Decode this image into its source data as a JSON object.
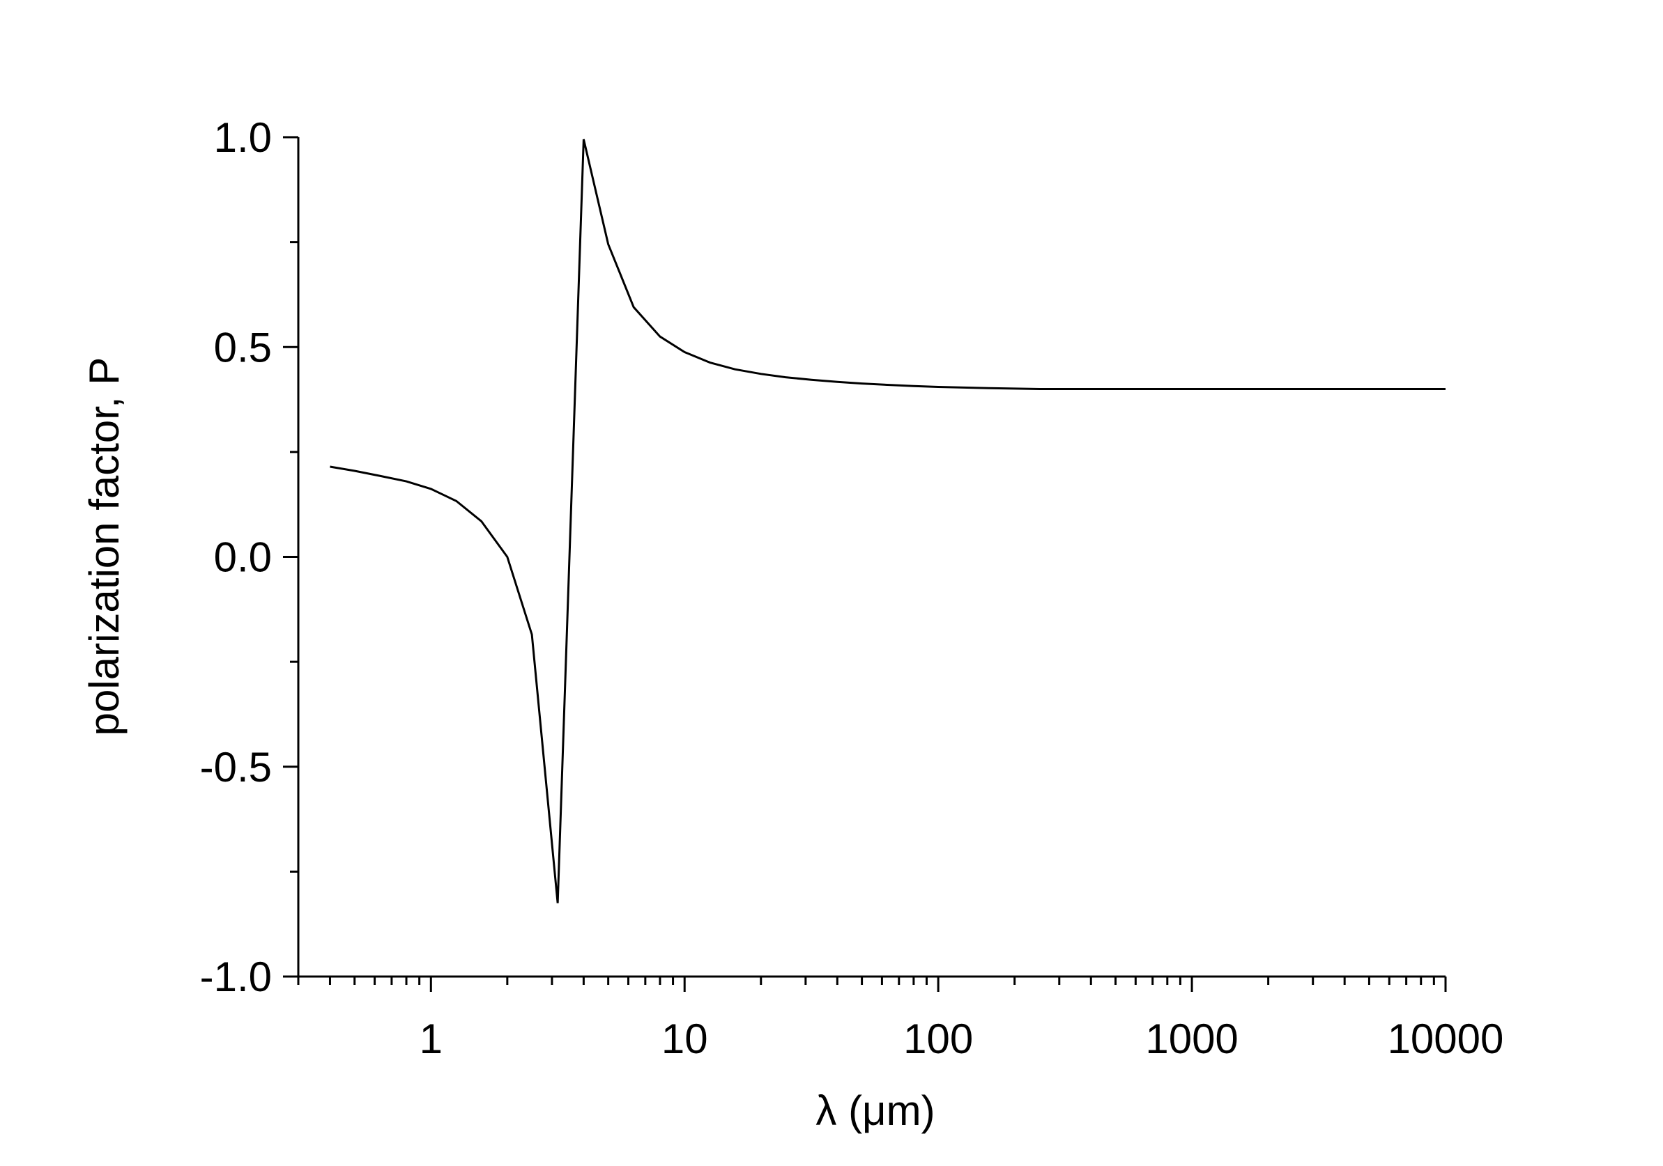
{
  "chart_data": {
    "type": "line",
    "title": "",
    "xlabel": "λ (μm)",
    "ylabel": "polarization factor, P",
    "x_scale": "log",
    "xlim": [
      0.3,
      10000
    ],
    "ylim": [
      -1.0,
      1.0
    ],
    "grid": false,
    "x_major_ticks": [
      1,
      10,
      100,
      1000,
      10000
    ],
    "x_tick_labels": [
      "1",
      "10",
      "100",
      "1000",
      "10000"
    ],
    "y_major_ticks": [
      -1.0,
      -0.5,
      0.0,
      0.5,
      1.0
    ],
    "y_tick_labels": [
      "-1.0",
      "-0.5",
      "0.0",
      "0.5",
      "1.0"
    ],
    "y_minor_ticks": [
      -0.75,
      -0.25,
      0.25,
      0.75
    ],
    "line_color": "#000000",
    "series": [
      {
        "x": [
          0.4,
          0.5,
          0.63,
          0.8,
          1.0,
          1.26,
          1.58,
          2.0,
          2.5,
          3.16,
          4.0,
          5.0,
          6.3,
          8.0,
          10,
          12.6,
          15.8,
          20,
          25,
          31.6,
          40,
          50,
          63,
          80,
          100,
          158,
          251,
          1000,
          10000
        ],
        "y": [
          0.215,
          0.205,
          0.193,
          0.18,
          0.162,
          0.133,
          0.085,
          0.0,
          -0.185,
          -0.825,
          0.995,
          0.745,
          0.595,
          0.525,
          0.488,
          0.463,
          0.447,
          0.436,
          0.428,
          0.422,
          0.417,
          0.413,
          0.41,
          0.407,
          0.405,
          0.402,
          0.4,
          0.4,
          0.4
        ]
      }
    ]
  }
}
